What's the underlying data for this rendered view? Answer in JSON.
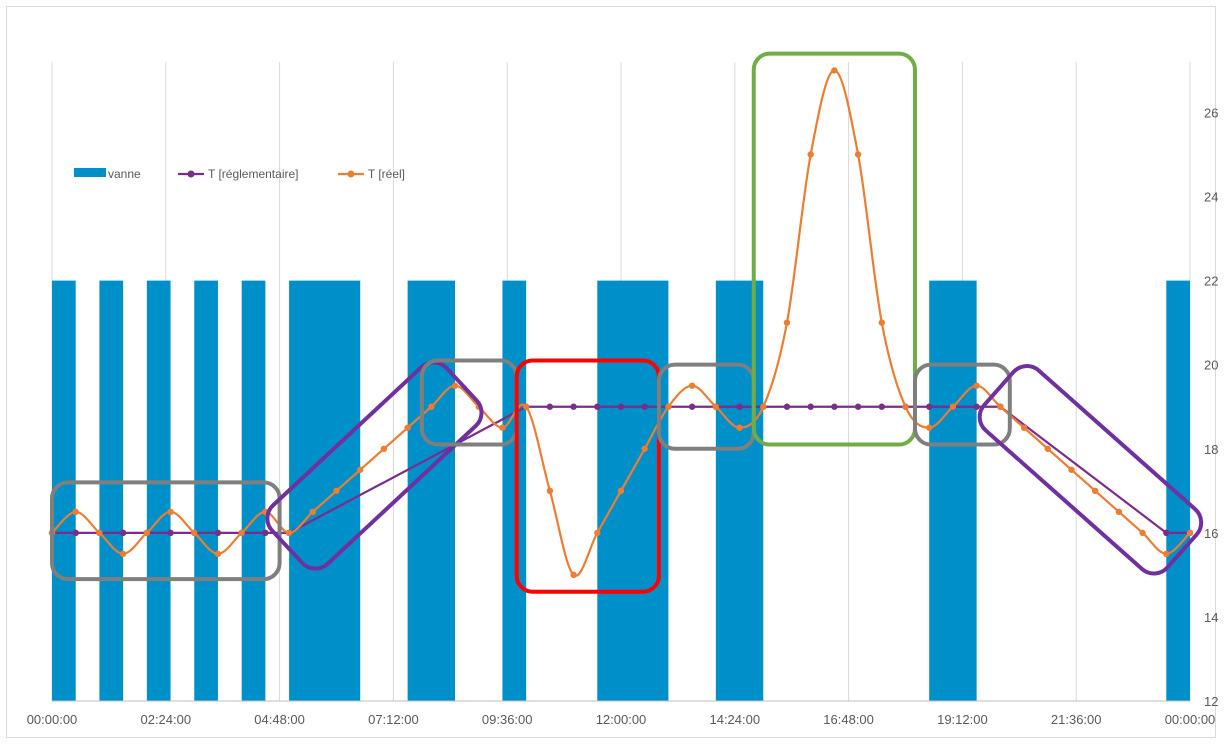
{
  "chart_data": {
    "type": "bar+line",
    "x_tick_labels": [
      "00:00:00",
      "02:24:00",
      "04:48:00",
      "07:12:00",
      "09:36:00",
      "12:00:00",
      "14:24:00",
      "16:48:00",
      "19:12:00",
      "21:36:00",
      "00:00:00"
    ],
    "x_unit": "hours",
    "xlim": [
      0,
      24
    ],
    "y_tick_labels": [
      "12",
      "14",
      "16",
      "18",
      "20",
      "22",
      "24",
      "26"
    ],
    "ylim": [
      12,
      27.2
    ],
    "y_axis_side": "right",
    "grid": "vertical",
    "legend_placement": "upper-left",
    "series": [
      {
        "name": "vanne",
        "kind": "bar",
        "color": "#0090C9",
        "top_value": 22,
        "intervals": [
          [
            0,
            0.5
          ],
          [
            1,
            1.5
          ],
          [
            2,
            2.5
          ],
          [
            3,
            3.5
          ],
          [
            4,
            4.5
          ],
          [
            5,
            6.5
          ],
          [
            7.5,
            8.5
          ],
          [
            9.5,
            10
          ],
          [
            11.5,
            13
          ],
          [
            14,
            15
          ],
          [
            18.5,
            19.5
          ],
          [
            23.5,
            24
          ]
        ]
      },
      {
        "name": "T [réglementaire]",
        "kind": "line",
        "color": "#7B2C8C",
        "x": [
          0,
          0.5,
          1,
          1.5,
          2,
          2.5,
          3,
          3.5,
          4,
          4.5,
          5,
          10,
          10.5,
          11,
          11.5,
          12,
          12.5,
          13,
          13.5,
          14,
          14.5,
          15,
          15.5,
          16,
          16.5,
          17,
          17.5,
          18,
          18.5,
          19,
          19.5,
          20,
          23.5,
          24
        ],
        "y": [
          16,
          16,
          16,
          16,
          16,
          16,
          16,
          16,
          16,
          16,
          16,
          19,
          19,
          19,
          19,
          19,
          19,
          19,
          19,
          19,
          19,
          19,
          19,
          19,
          19,
          19,
          19,
          19,
          19,
          19,
          19,
          19,
          16,
          16
        ]
      },
      {
        "name": "T [réel]",
        "kind": "line",
        "color": "#ED7D31",
        "x": [
          0,
          0.5,
          1,
          1.5,
          2,
          2.5,
          3,
          3.5,
          4,
          4.5,
          5,
          5.5,
          6,
          6.5,
          7,
          7.5,
          8,
          8.5,
          9,
          9.5,
          10,
          10.5,
          11,
          11.5,
          12,
          12.5,
          13,
          13.5,
          14,
          14.5,
          15,
          15.5,
          16,
          16.5,
          17,
          17.5,
          18,
          18.5,
          19,
          19.5,
          20,
          20.5,
          21,
          21.5,
          22,
          22.5,
          23,
          23.5,
          24
        ],
        "y": [
          16,
          16.5,
          16,
          15.5,
          16,
          16.5,
          16,
          15.5,
          16,
          16.5,
          16,
          16.5,
          17,
          17.5,
          18,
          18.5,
          19,
          19.5,
          19,
          18.5,
          19,
          17,
          15,
          16,
          17,
          18,
          19,
          19.5,
          19,
          18.5,
          19,
          21,
          25,
          27,
          25,
          21,
          19,
          18.5,
          19,
          19.5,
          19,
          18.5,
          18,
          17.5,
          17,
          16.5,
          16,
          15.5,
          16
        ]
      }
    ],
    "annotation_boxes": [
      {
        "color": "#7F7F7F",
        "shape": "rect",
        "x_range": [
          0,
          4.8
        ],
        "y_range": [
          14.9,
          17.2
        ]
      },
      {
        "color": "#7030A0",
        "shape": "diamond",
        "x_range": [
          4.8,
          8.8
        ],
        "y_range": [
          15.5,
          19.7
        ]
      },
      {
        "color": "#7F7F7F",
        "shape": "rect",
        "x_range": [
          7.8,
          9.8
        ],
        "y_range": [
          18.1,
          20.1
        ]
      },
      {
        "color": "#FF0000",
        "shape": "rect",
        "x_range": [
          9.8,
          12.8
        ],
        "y_range": [
          14.6,
          20.1
        ]
      },
      {
        "color": "#7F7F7F",
        "shape": "rect",
        "x_range": [
          12.8,
          14.8
        ],
        "y_range": [
          18,
          20
        ]
      },
      {
        "color": "#70AD47",
        "shape": "rect",
        "x_range": [
          14.8,
          18.2
        ],
        "y_range": [
          18.1,
          27.4
        ]
      },
      {
        "color": "#7F7F7F",
        "shape": "rect",
        "x_range": [
          18.2,
          20.2
        ],
        "y_range": [
          18.1,
          20
        ]
      },
      {
        "color": "#7030A0",
        "shape": "diamond",
        "x_range": [
          19.8,
          24
        ],
        "y_range": [
          15.4,
          19.6
        ]
      }
    ]
  }
}
